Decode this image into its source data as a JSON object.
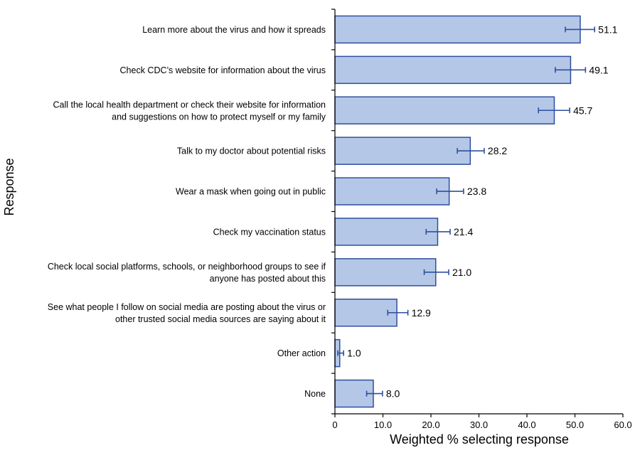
{
  "chart_data": {
    "type": "bar",
    "orientation": "horizontal",
    "xlabel": "Weighted % selecting response",
    "ylabel": "Response",
    "xlim": [
      0,
      60
    ],
    "x_ticks": [
      "0",
      "10.0",
      "20.0",
      "30.0",
      "40.0",
      "50.0",
      "60.0"
    ],
    "grid": false,
    "bar_color": "#b4c7e7",
    "bar_edge_color": "#2f4f9f",
    "error_bar_color": "#2f4f9f",
    "categories": [
      [
        "Learn more about the virus and how it spreads"
      ],
      [
        "Check CDC’s website for information about the virus"
      ],
      [
        "Call the local health department or check their website for information",
        "and suggestions on how to protect myself or my family"
      ],
      [
        "Talk to my doctor about potential risks"
      ],
      [
        "Wear a mask when going out in public"
      ],
      [
        "Check my vaccination status"
      ],
      [
        "Check local social platforms, schools, or neighborhood groups to see if",
        "anyone has posted about this"
      ],
      [
        "See what people I follow on social media are posting about the virus or",
        "other trusted social media sources are saying about it"
      ],
      [
        "Other action"
      ],
      [
        "None"
      ]
    ],
    "values": [
      51.1,
      49.1,
      45.7,
      28.2,
      23.8,
      21.4,
      21.0,
      12.9,
      1.0,
      8.0
    ],
    "value_labels": [
      "51.1",
      "49.1",
      "45.7",
      "28.2",
      "23.8",
      "21.4",
      "21.0",
      "12.9",
      "1.0",
      "8.0"
    ],
    "error_low": [
      48.0,
      45.9,
      42.4,
      25.5,
      21.2,
      19.0,
      18.6,
      11.0,
      0.6,
      6.6
    ],
    "error_high": [
      54.1,
      52.2,
      48.9,
      31.1,
      26.8,
      24.0,
      23.7,
      15.2,
      1.8,
      9.9
    ]
  }
}
